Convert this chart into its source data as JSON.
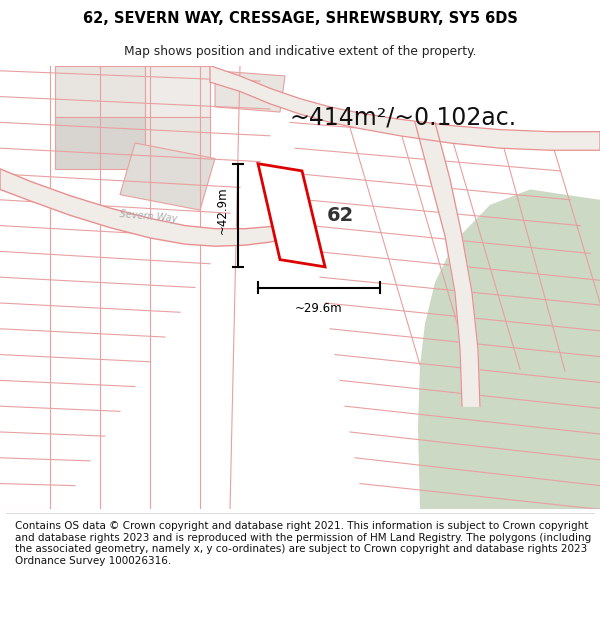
{
  "title_line1": "62, SEVERN WAY, CRESSAGE, SHREWSBURY, SY5 6DS",
  "title_line2": "Map shows position and indicative extent of the property.",
  "area_text": "~414m²/~0.102ac.",
  "label_62": "62",
  "dim_vertical": "~42.9m",
  "dim_horizontal": "~29.6m",
  "road_label": "Severn Way",
  "footer_text": "Contains OS data © Crown copyright and database right 2021. This information is subject to Crown copyright and database rights 2023 and is reproduced with the permission of HM Land Registry. The polygons (including the associated geometry, namely x, y co-ordinates) are subject to Crown copyright and database rights 2023 Ordnance Survey 100026316.",
  "map_bg": "#f2eeea",
  "plot_outline_color": "#dd0000",
  "green_area_color": "#ccd9c4",
  "road_line_color": "#e89090",
  "grid_line_color": "#e8a0a0",
  "road_fill_color": "#e8e4e0",
  "light_block_color": "#e0dcd8"
}
